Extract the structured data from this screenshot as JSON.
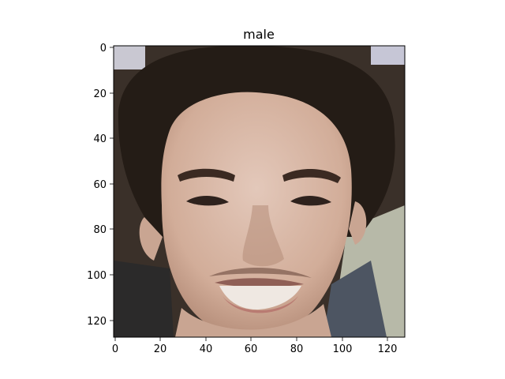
{
  "figure": {
    "title": "male",
    "image_subject": "face-photo"
  },
  "axes": {
    "x_ticks": [
      0,
      20,
      40,
      60,
      80,
      100,
      120
    ],
    "y_ticks": [
      0,
      20,
      40,
      60,
      80,
      100,
      120
    ],
    "xlim": [
      -0.5,
      127.5
    ],
    "ylim": [
      127.5,
      -0.5
    ]
  },
  "colors": {
    "background": "#ffffff",
    "frame": "#000000",
    "hair": "#241c16",
    "skin": "#d7b6a4",
    "skin_shadow": "#b48c78",
    "eyes": "#2e221d",
    "lips": "#b97b72",
    "teeth": "#efe8e2"
  }
}
